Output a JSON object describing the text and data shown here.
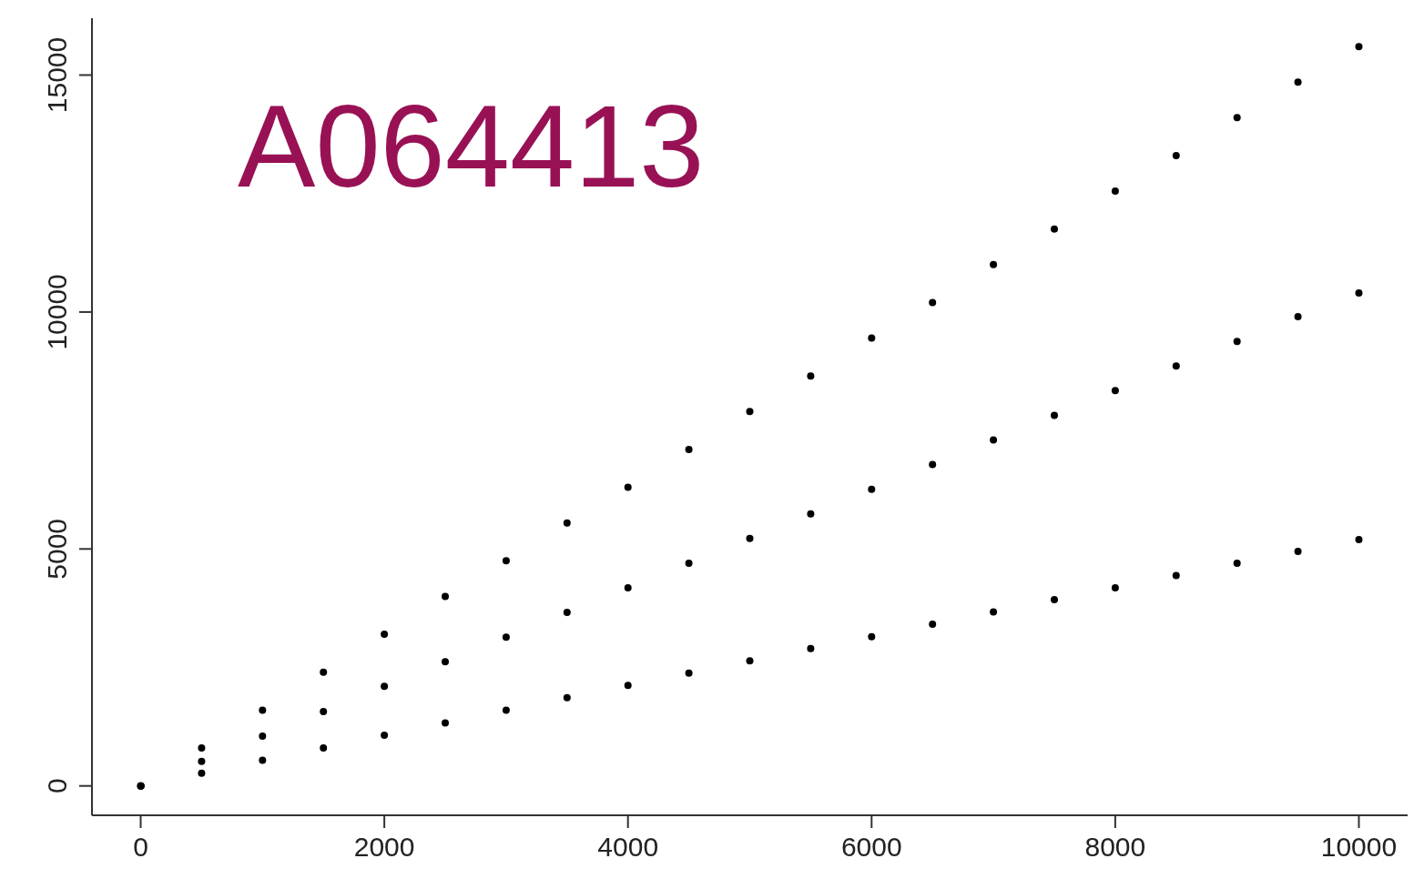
{
  "chart_data": {
    "type": "scatter",
    "annotations": [
      "A064413"
    ],
    "xlim": [
      -400,
      10400
    ],
    "xticks": [
      0,
      2000,
      4000,
      6000,
      8000,
      10000
    ],
    "ylim": [
      -620,
      16200
    ],
    "yticks": [
      0,
      5000,
      10000,
      15000
    ],
    "marker": "circle",
    "grid": false,
    "series": [
      {
        "color": "#000000",
        "x": [
          1,
          500,
          1000,
          1500,
          2000,
          2500,
          3000,
          3500,
          4000,
          4500,
          5000,
          5500,
          6000,
          6500,
          7000,
          7500,
          8000,
          8500,
          9000,
          9500,
          10000
        ],
        "values": [
          0,
          800,
          1600,
          2400,
          3200,
          4000,
          4750,
          5550,
          6300,
          7100,
          7900,
          8650,
          9450,
          10200,
          11000,
          11750,
          12550,
          13300,
          14100,
          14850,
          15600
        ]
      },
      {
        "color": "#000000",
        "x": [
          1,
          500,
          1000,
          1500,
          2000,
          2500,
          3000,
          3500,
          4000,
          4500,
          5000,
          5500,
          6000,
          6500,
          7000,
          7500,
          8000,
          8500,
          9000,
          9500,
          10000
        ],
        "values": [
          0,
          520,
          1050,
          1570,
          2100,
          2620,
          3140,
          3660,
          4180,
          4700,
          5220,
          5740,
          6260,
          6780,
          7300,
          7820,
          8340,
          8860,
          9380,
          9900,
          10400
        ]
      },
      {
        "color": "#000000",
        "x": [
          1,
          500,
          1000,
          1500,
          2000,
          2500,
          3000,
          3500,
          4000,
          4500,
          5000,
          5500,
          6000,
          6500,
          7000,
          7500,
          8000,
          8500,
          9000,
          9500,
          10000
        ],
        "values": [
          0,
          270,
          540,
          800,
          1070,
          1330,
          1600,
          1860,
          2120,
          2380,
          2640,
          2900,
          3150,
          3410,
          3670,
          3930,
          4180,
          4440,
          4700,
          4950,
          5200
        ]
      }
    ]
  }
}
